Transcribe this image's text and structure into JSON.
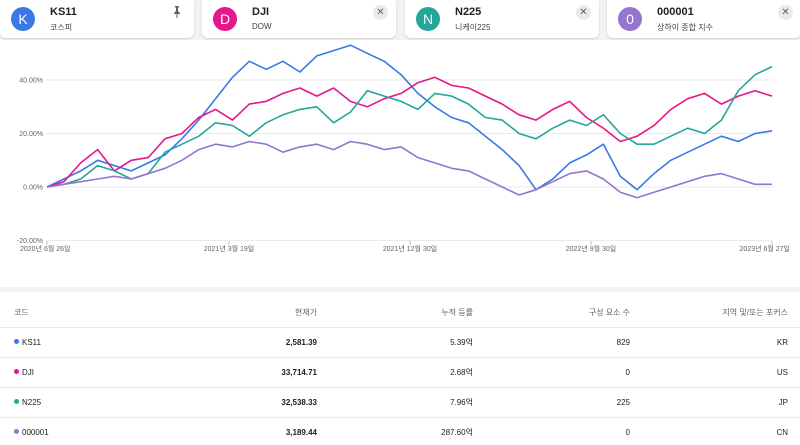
{
  "cards": [
    {
      "avatar": "K",
      "symbol": "KS11",
      "name": "코스피",
      "color": "#3b78e7",
      "action_icon": "pin-icon"
    },
    {
      "avatar": "D",
      "symbol": "DJI",
      "name": "DOW",
      "color": "#e5178d",
      "action_icon": "close-icon"
    },
    {
      "avatar": "N",
      "symbol": "N225",
      "name": "니케이225",
      "color": "#26a69a",
      "action_icon": "close-icon"
    },
    {
      "avatar": "0",
      "symbol": "000001",
      "name": "상하이 종합 지수",
      "color": "#9575cd",
      "action_icon": "close-icon"
    }
  ],
  "chart_data": {
    "type": "line",
    "y_unit": "%",
    "ylim": [
      -20,
      50
    ],
    "yticks": [
      "40.00%",
      "20.00%",
      "0.00%",
      "-20.00%"
    ],
    "x_ticks": [
      "2020년 6월 26일",
      "2021년 3월 19일",
      "2021년 12월 30일",
      "2022년 9월 30일",
      "2023년 6월 27일"
    ],
    "grid": true,
    "series": [
      {
        "name": "KS11",
        "color": "#3b78e7",
        "values": [
          0,
          3,
          6,
          10,
          8,
          6,
          9,
          12,
          18,
          25,
          33,
          41,
          47,
          44,
          47,
          43,
          49,
          51,
          53,
          50,
          47,
          42,
          35,
          30,
          26,
          24,
          19,
          14,
          8,
          -1,
          3,
          9,
          12,
          16,
          4,
          -1,
          5,
          10,
          13,
          16,
          19,
          17,
          20,
          21
        ]
      },
      {
        "name": "DJI",
        "color": "#e5178d",
        "values": [
          0,
          2,
          9,
          14,
          6,
          10,
          11,
          18,
          20,
          26,
          29,
          25,
          31,
          32,
          35,
          37,
          34,
          37,
          32,
          30,
          33,
          35,
          39,
          41,
          38,
          37,
          34,
          31,
          27,
          25,
          29,
          32,
          26,
          22,
          17,
          19,
          23,
          29,
          33,
          35,
          31,
          34,
          36,
          34
        ]
      },
      {
        "name": "N225",
        "color": "#26a69a",
        "values": [
          0,
          1,
          3,
          8,
          6,
          3,
          5,
          13,
          16,
          19,
          24,
          23,
          19,
          24,
          27,
          29,
          30,
          24,
          28,
          36,
          34,
          32,
          29,
          35,
          34,
          31,
          26,
          25,
          20,
          18,
          22,
          25,
          23,
          27,
          20,
          16,
          16,
          19,
          22,
          20,
          25,
          36,
          42,
          45
        ]
      },
      {
        "name": "000001",
        "color": "#9575cd",
        "values": [
          0,
          1,
          2,
          3,
          4,
          3,
          5,
          7,
          10,
          14,
          16,
          15,
          17,
          16,
          13,
          15,
          16,
          14,
          17,
          16,
          14,
          15,
          11,
          9,
          7,
          6,
          3,
          0,
          -3,
          -1,
          2,
          5,
          6,
          3,
          -2,
          -4,
          -2,
          0,
          2,
          4,
          5,
          3,
          1,
          1
        ]
      }
    ]
  },
  "table": {
    "headers": [
      "코드",
      "현재가",
      "누적 등률",
      "구성 요소 수",
      "지역 및/또는 포커스"
    ],
    "rows": [
      {
        "code": "KS11",
        "color": "#3b78e7",
        "price": "2,581.39",
        "cum": "5.39억",
        "count": "829",
        "region": "KR"
      },
      {
        "code": "DJI",
        "color": "#e5178d",
        "price": "33,714.71",
        "cum": "2.68억",
        "count": "0",
        "region": "US"
      },
      {
        "code": "N225",
        "color": "#26a69a",
        "price": "32,538.33",
        "cum": "7.96억",
        "count": "225",
        "region": "JP"
      },
      {
        "code": "000001",
        "color": "#9575cd",
        "price": "3,189.44",
        "cum": "287.60억",
        "count": "0",
        "region": "CN"
      }
    ]
  }
}
